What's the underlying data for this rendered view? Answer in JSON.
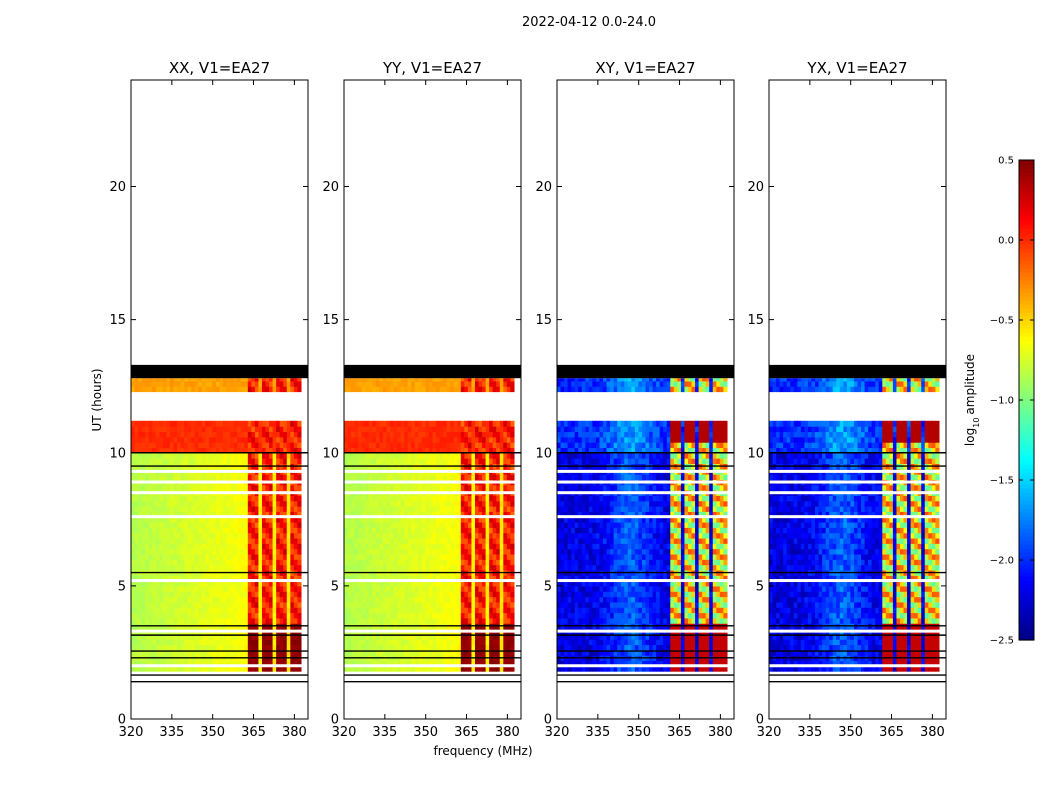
{
  "chart_data": {
    "type": "heatmap",
    "suptitle": "2022-04-12 0.0-24.0",
    "xlabel": "frequency (MHz)",
    "ylabel": "UT (hours)",
    "xlim": [
      320,
      385
    ],
    "ylim": [
      0,
      24
    ],
    "xticks": [
      320,
      335,
      350,
      365,
      380
    ],
    "yticks": [
      0,
      5,
      10,
      15,
      20
    ],
    "panels": [
      {
        "title": "XX, V1=EA27",
        "mode": "parallel",
        "show_ylabel": true
      },
      {
        "title": "YY, V1=EA27",
        "mode": "parallel",
        "show_ylabel": false
      },
      {
        "title": "XY, V1=EA27",
        "mode": "cross",
        "show_ylabel": false
      },
      {
        "title": "YX, V1=EA27",
        "mode": "cross",
        "show_ylabel": false
      }
    ],
    "colorbar": {
      "label": "log10 amplitude",
      "range": [
        -2.5,
        0.5
      ],
      "ticks": [
        "0.5",
        "0.0",
        "−0.5",
        "−1.0",
        "−1.5",
        "−2.0",
        "−2.5"
      ],
      "tick_values": [
        0.5,
        0.0,
        -0.5,
        -1.0,
        -1.5,
        -2.0,
        -2.5
      ],
      "colormap": "jet"
    },
    "data_time_ranges_hours": [
      [
        1.8,
        11.2
      ],
      [
        12.3,
        12.8
      ]
    ],
    "flagged_black_band_hours": [
      12.8,
      13.3
    ],
    "black_line_hours": [
      1.4,
      1.65,
      2.3,
      2.55,
      3.15,
      3.5,
      5.5,
      9.5,
      10.0
    ],
    "white_gap_hours": [
      2.0,
      3.3,
      5.2,
      7.6,
      8.5,
      8.9,
      9.3,
      11.9
    ],
    "parallel_bright_channels_MHz": [
      [
        362.5,
        366.5
      ],
      [
        367.5,
        371.5
      ],
      [
        373,
        377
      ],
      [
        378,
        382
      ]
    ],
    "cross_bright_channels_MHz": [
      [
        362,
        366
      ],
      [
        366.5,
        371
      ],
      [
        372,
        376.5
      ],
      [
        377.5,
        382
      ]
    ],
    "colors": {
      "background": "#ffffff",
      "flag": "#000000"
    }
  }
}
